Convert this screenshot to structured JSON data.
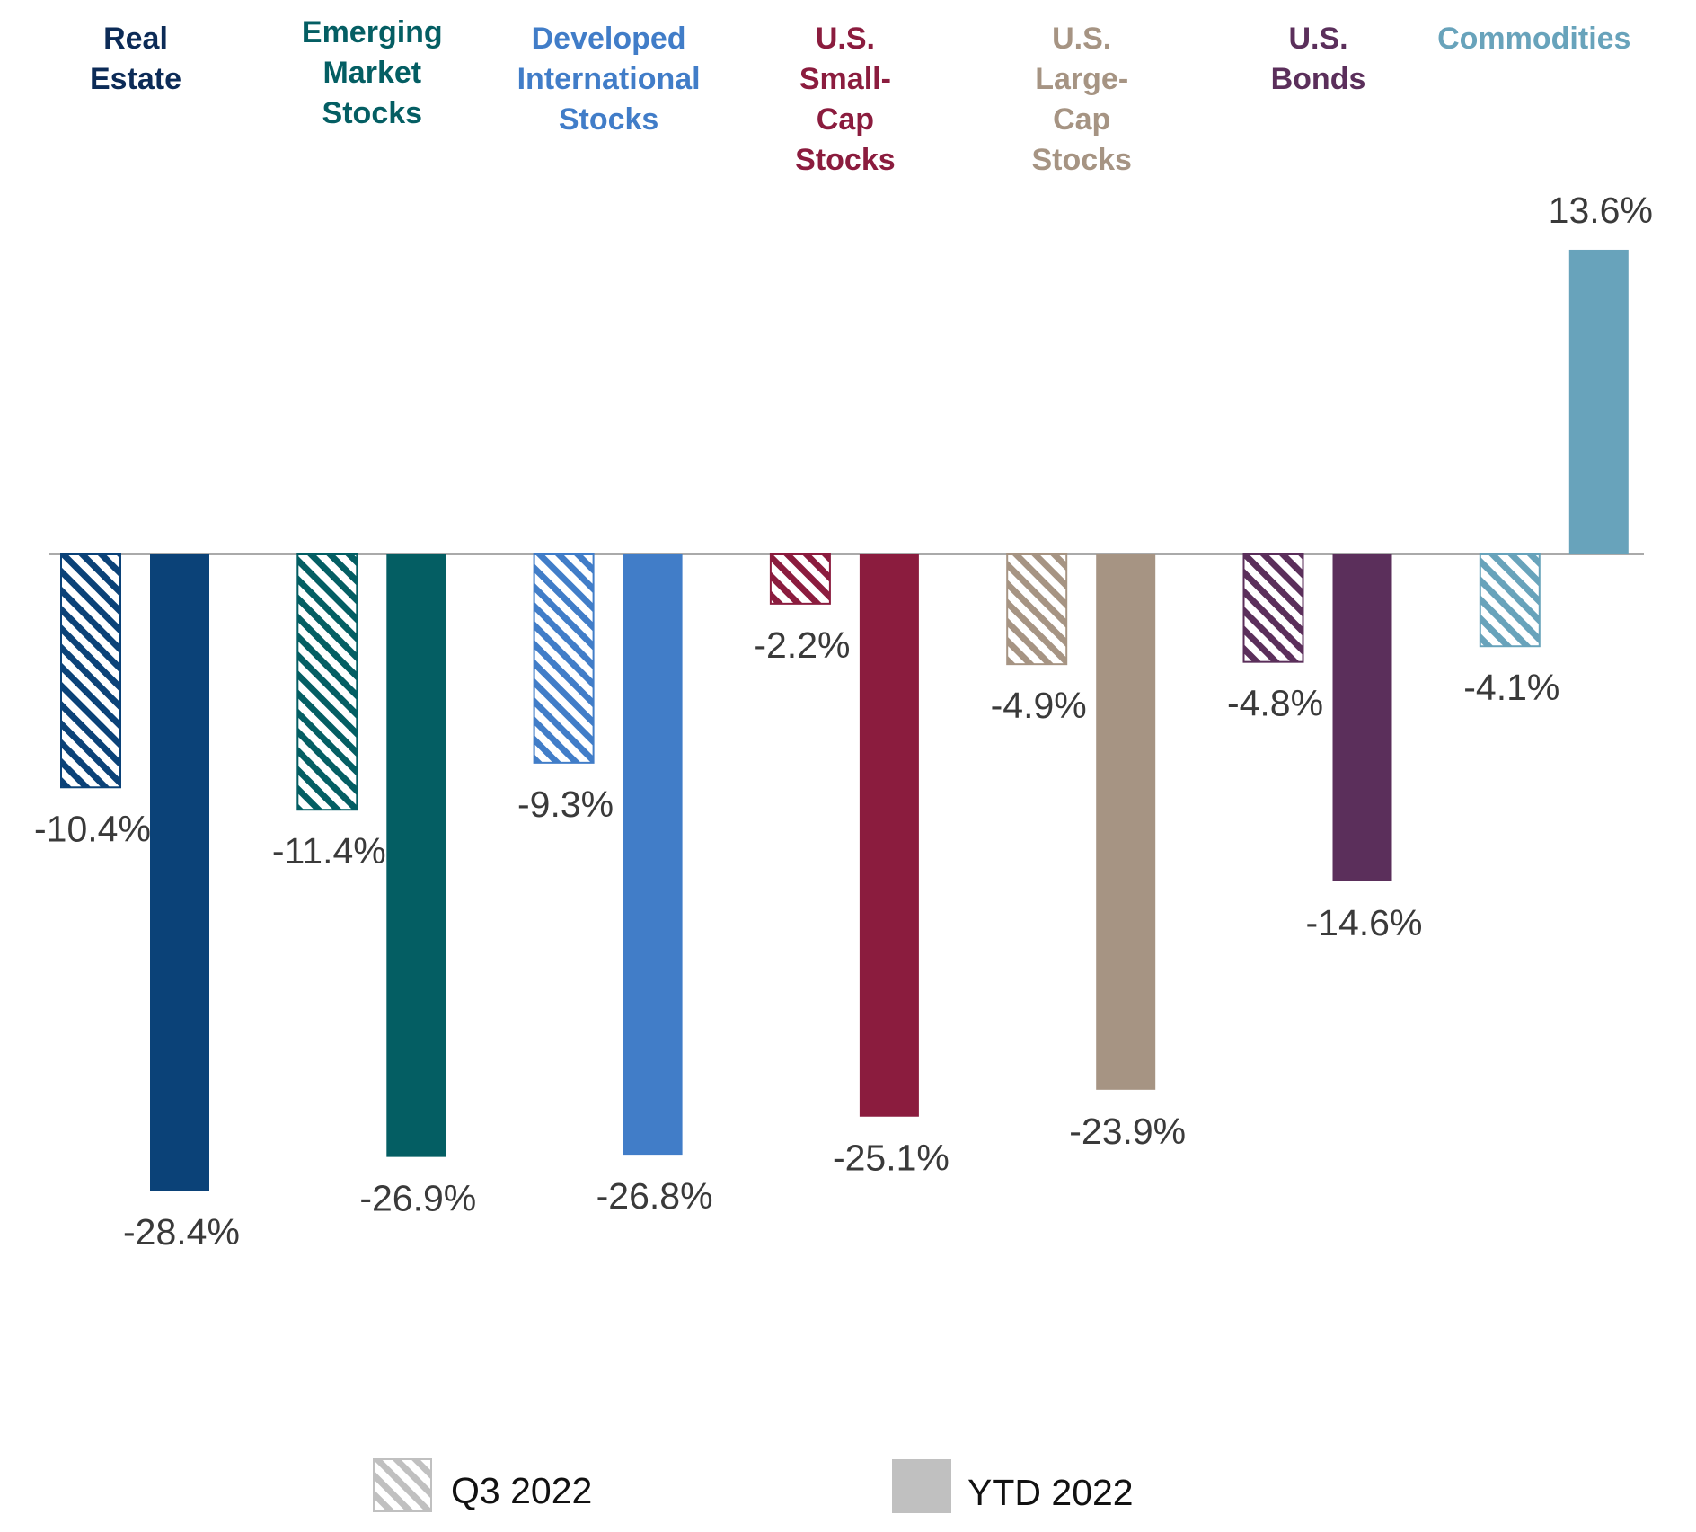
{
  "chart_data": {
    "type": "bar",
    "title": "",
    "xlabel": "",
    "ylabel": "",
    "ylim": [
      -30,
      15
    ],
    "grid": false,
    "legend_position": "bottom-center",
    "categories": [
      {
        "lines": [
          "Real",
          "Estate"
        ],
        "color": "#0b4278",
        "label_color": "#0c2b57"
      },
      {
        "lines": [
          "Emerging",
          "Market",
          "Stocks"
        ],
        "color": "#045e63",
        "label_color": "#045e63"
      },
      {
        "lines": [
          "Developed",
          "International",
          "Stocks"
        ],
        "color": "#417dc8",
        "label_color": "#417dc8"
      },
      {
        "lines": [
          "U.S.",
          "Small-",
          "Cap",
          "Stocks"
        ],
        "color": "#8b1c3e",
        "label_color": "#8b1c3e"
      },
      {
        "lines": [
          "U.S.",
          "Large-",
          "Cap",
          "Stocks"
        ],
        "color": "#a69483",
        "label_color": "#a69483"
      },
      {
        "lines": [
          "U.S.",
          "Bonds"
        ],
        "color": "#5b2f5b",
        "label_color": "#5b2f5b"
      },
      {
        "lines": [
          "Commodities"
        ],
        "color": "#68a3bb",
        "label_color": "#68a3bb"
      }
    ],
    "series": [
      {
        "name": "Q3 2022",
        "style": "hatched",
        "values": [
          -10.4,
          -11.4,
          -9.3,
          -2.2,
          -4.9,
          -4.8,
          -4.1
        ],
        "labels": [
          "-10.4%",
          "-11.4%",
          "-9.3%",
          "-2.2%",
          "-4.9%",
          "-4.8%",
          "-4.1%"
        ]
      },
      {
        "name": "YTD 2022",
        "style": "solid",
        "values": [
          -28.4,
          -26.9,
          -26.8,
          -25.1,
          -23.9,
          -14.6,
          13.6
        ],
        "labels": [
          "-28.4%",
          "-26.9%",
          "-26.8%",
          "-25.1%",
          "-23.9%",
          "-14.6%",
          "13.6%"
        ]
      }
    ],
    "legend": [
      {
        "label": "Q3 2022",
        "swatch": "hatched",
        "color": "#c0c0c0"
      },
      {
        "label": "YTD 2022",
        "swatch": "solid",
        "color": "#c0c0c0"
      }
    ]
  }
}
